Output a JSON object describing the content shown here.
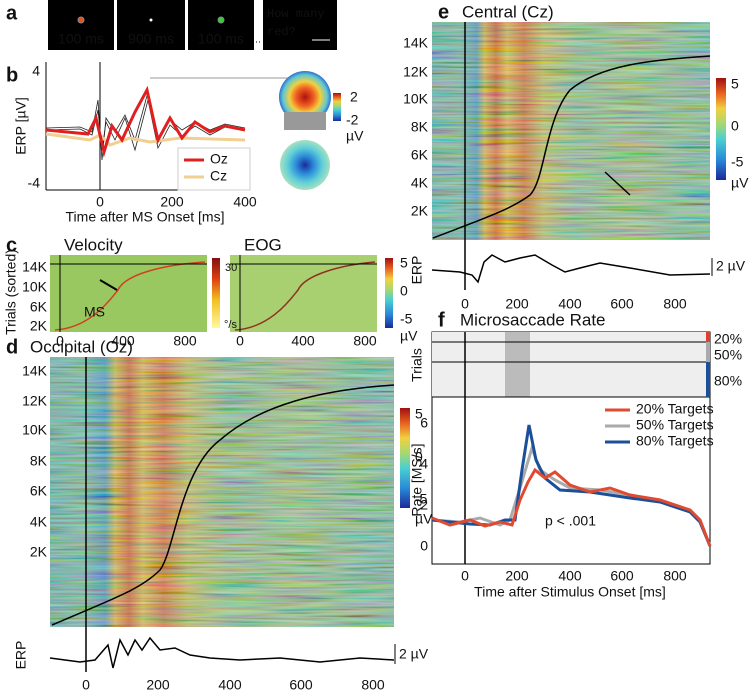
{
  "a": {
    "label": "a",
    "frames": [
      "100 ms",
      "900 ms",
      "100 ms"
    ],
    "prompt": [
      "How many",
      "red?"
    ]
  },
  "b": {
    "label": "b",
    "y_axis": "ERP [µV]",
    "x_axis": "Time after MS Onset [ms]",
    "yticks": [
      "4",
      "-4"
    ],
    "xticks": [
      "0",
      "200",
      "400"
    ],
    "legend": [
      "Oz",
      "Cz"
    ],
    "colorbar": [
      "2",
      "-2",
      "µV"
    ]
  },
  "c": {
    "label": "c",
    "titles": [
      "Velocity",
      "EOG"
    ],
    "y_axis": "Trials (sorted)",
    "yticks": [
      "14K",
      "10K",
      "6K",
      "2K"
    ],
    "xticks": [
      "0",
      "400",
      "800"
    ],
    "velocity_bar": [
      "30",
      "°/s"
    ],
    "eog_bar": [
      "5",
      "0",
      "-5",
      "µV"
    ],
    "annotation": "MS"
  },
  "d": {
    "label": "d",
    "title": "Occipital (Oz)",
    "yticks": [
      "14K",
      "12K",
      "10K",
      "8K",
      "6K",
      "4K",
      "2K"
    ],
    "colorbar": [
      "5",
      "0",
      "-5",
      "µV"
    ],
    "erp_label": "ERP",
    "scale": "2 µV",
    "xticks": [
      "0",
      "200",
      "400",
      "600",
      "800"
    ]
  },
  "e": {
    "label": "e",
    "title": "Central (Cz)",
    "yticks": [
      "14K",
      "12K",
      "10K",
      "8K",
      "6K",
      "4K",
      "2K"
    ],
    "colorbar": [
      "5",
      "0",
      "-5",
      "µV"
    ],
    "erp_label": "ERP",
    "scale": "2 µV",
    "xticks": [
      "0",
      "200",
      "400",
      "600",
      "800"
    ]
  },
  "f": {
    "label": "f",
    "title": "Microsaccade Rate",
    "raster_label": "Trials",
    "groups": [
      "20%",
      "50%",
      "80%"
    ],
    "y_axis": "Rate [MS/s]",
    "yticks": [
      "6",
      "4",
      "2",
      "0"
    ],
    "legend": [
      "20% Targets",
      "50% Targets",
      "80% Targets"
    ],
    "annotation": "p < .001",
    "xticks": [
      "0",
      "200",
      "400",
      "600",
      "800"
    ],
    "x_axis": "Time after Stimulus Onset [ms]"
  }
}
